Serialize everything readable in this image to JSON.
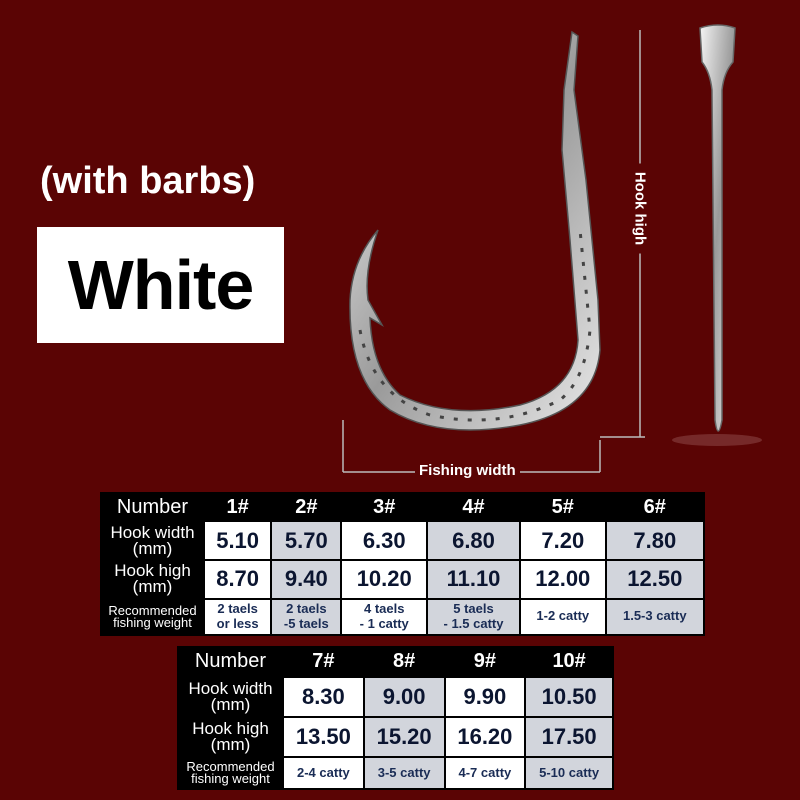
{
  "subtitle": "(with barbs)",
  "color_label": "White",
  "dimensions": {
    "height_label": "Hook high",
    "width_label": "Fishing width"
  },
  "row_labels": {
    "number": "Number",
    "width": [
      "Hook width",
      "(mm)"
    ],
    "high": [
      "Hook high",
      "(mm)"
    ],
    "weight": [
      "Recommended",
      "fishing weight"
    ]
  },
  "table1": {
    "numbers": [
      "1#",
      "2#",
      "3#",
      "4#",
      "5#",
      "6#"
    ],
    "widths": [
      "5.10",
      "5.70",
      "6.30",
      "6.80",
      "7.20",
      "7.80"
    ],
    "highs": [
      "8.70",
      "9.40",
      "10.20",
      "11.10",
      "12.00",
      "12.50"
    ],
    "weights": [
      [
        "2 taels",
        "or less"
      ],
      [
        "2 taels",
        "-5 taels"
      ],
      [
        "4 taels",
        "- 1 catty"
      ],
      [
        "5 taels",
        "- 1.5 catty"
      ],
      [
        "1-2 catty",
        ""
      ],
      [
        "1.5-3 catty",
        ""
      ]
    ]
  },
  "table2": {
    "numbers": [
      "7#",
      "8#",
      "9#",
      "10#"
    ],
    "widths": [
      "8.30",
      "9.00",
      "9.90",
      "10.50"
    ],
    "highs": [
      "13.50",
      "15.20",
      "16.20",
      "17.50"
    ],
    "weights": [
      [
        "2-4 catty",
        ""
      ],
      [
        "3-5 catty",
        ""
      ],
      [
        "4-7 catty",
        ""
      ],
      [
        "5-10 catty",
        ""
      ]
    ]
  },
  "colors": {
    "background": "#5a0404",
    "cell_alt": "#d2d5dc"
  }
}
